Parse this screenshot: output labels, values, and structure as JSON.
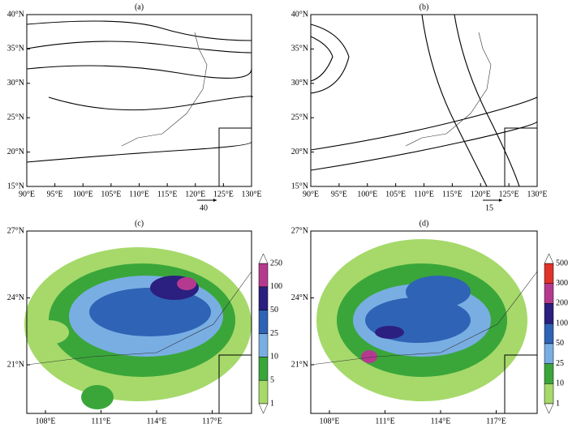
{
  "panels": [
    {
      "label": "(a)",
      "xticks": [
        "90°E",
        "95°E",
        "100°E",
        "105°E",
        "110°E",
        "115°E",
        "120°E",
        "125°E",
        "130°E"
      ],
      "yticks": [
        "40°N",
        "35°N",
        "30°N",
        "25°N",
        "20°N",
        "15°N"
      ],
      "reference_vector": "40"
    },
    {
      "label": "(b)",
      "xticks": [
        "90°E",
        "95°E",
        "100°E",
        "105°E",
        "110°E",
        "115°E",
        "120°E",
        "125°E",
        "130°E"
      ],
      "yticks": [
        "40°N",
        "35°N",
        "30°N",
        "25°N",
        "20°N",
        "15°N"
      ],
      "reference_vector": "15"
    },
    {
      "label": "(c)",
      "xticks": [
        "108°E",
        "111°E",
        "114°E",
        "117°E"
      ],
      "yticks": [
        "27°N",
        "24°N",
        "21°N"
      ],
      "colorbar": {
        "ticks": [
          1,
          5,
          10,
          25,
          50,
          100,
          250
        ],
        "colors": [
          "#ffffff",
          "#a6d96a",
          "#3aa63a",
          "#79aee3",
          "#2f63b5",
          "#2b1f80",
          "#b53a8f",
          "#ffffff"
        ]
      }
    },
    {
      "label": "(d)",
      "xticks": [
        "108°E",
        "111°E",
        "114°E",
        "117°E"
      ],
      "yticks": [
        "27°N",
        "24°N",
        "21°N"
      ],
      "colorbar": {
        "ticks": [
          1,
          10,
          25,
          50,
          100,
          200,
          300,
          500
        ],
        "colors": [
          "#ffffff",
          "#a6d96a",
          "#3aa63a",
          "#79aee3",
          "#2f63b5",
          "#2b1f80",
          "#b53a8f",
          "#e0332a",
          "#ffffff"
        ]
      }
    }
  ]
}
